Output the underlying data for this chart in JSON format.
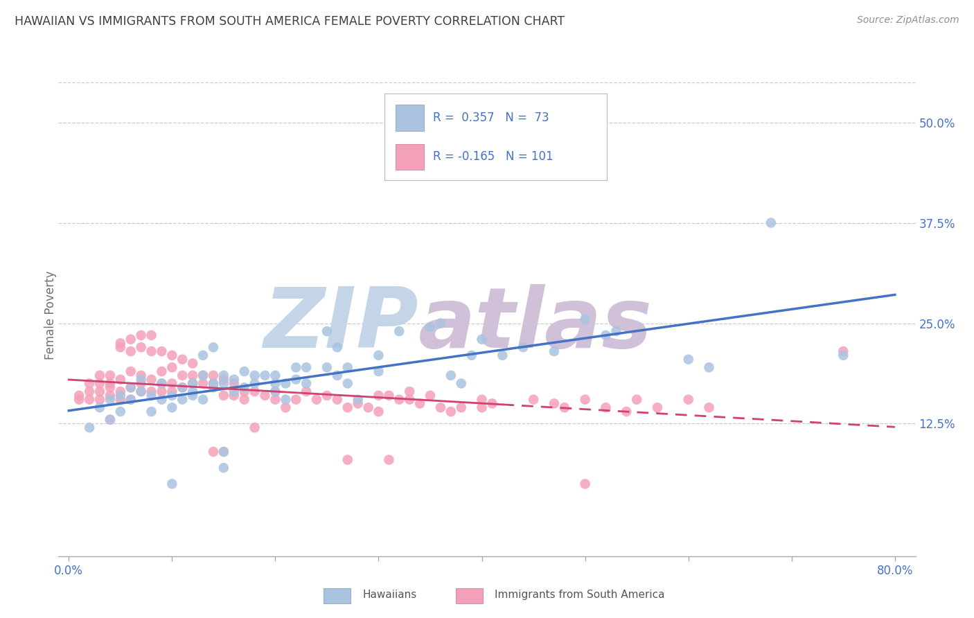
{
  "title": "HAWAIIAN VS IMMIGRANTS FROM SOUTH AMERICA FEMALE POVERTY CORRELATION CHART",
  "source": "Source: ZipAtlas.com",
  "ylabel": "Female Poverty",
  "ytick_labels": [
    "12.5%",
    "25.0%",
    "37.5%",
    "50.0%"
  ],
  "ytick_values": [
    0.125,
    0.25,
    0.375,
    0.5
  ],
  "xtick_values": [
    0.0,
    0.1,
    0.2,
    0.3,
    0.4,
    0.5,
    0.6,
    0.7,
    0.8
  ],
  "xlim": [
    -0.01,
    0.82
  ],
  "ylim": [
    -0.04,
    0.56
  ],
  "hawaiian_color": "#aac4e0",
  "immigrant_color": "#f4a0b8",
  "hawaiian_line_color": "#4472c4",
  "immigrant_line_color": "#d04070",
  "watermark_zip": "ZIP",
  "watermark_atlas": "atlas",
  "watermark_color_zip": "#c5d5e8",
  "watermark_color_atlas": "#d0c0d8",
  "legend_text_color": "#4472c4",
  "title_color": "#404040",
  "source_color": "#909090",
  "background_color": "#ffffff",
  "grid_color": "#cccccc",
  "hawaiian_scatter": [
    [
      0.02,
      0.12
    ],
    [
      0.03,
      0.145
    ],
    [
      0.04,
      0.155
    ],
    [
      0.04,
      0.13
    ],
    [
      0.05,
      0.14
    ],
    [
      0.05,
      0.16
    ],
    [
      0.06,
      0.155
    ],
    [
      0.06,
      0.17
    ],
    [
      0.07,
      0.165
    ],
    [
      0.07,
      0.18
    ],
    [
      0.08,
      0.14
    ],
    [
      0.08,
      0.16
    ],
    [
      0.09,
      0.175
    ],
    [
      0.09,
      0.155
    ],
    [
      0.1,
      0.16
    ],
    [
      0.1,
      0.145
    ],
    [
      0.1,
      0.05
    ],
    [
      0.11,
      0.17
    ],
    [
      0.11,
      0.155
    ],
    [
      0.12,
      0.165
    ],
    [
      0.12,
      0.175
    ],
    [
      0.12,
      0.16
    ],
    [
      0.13,
      0.21
    ],
    [
      0.13,
      0.185
    ],
    [
      0.13,
      0.155
    ],
    [
      0.14,
      0.22
    ],
    [
      0.14,
      0.175
    ],
    [
      0.14,
      0.17
    ],
    [
      0.15,
      0.185
    ],
    [
      0.15,
      0.175
    ],
    [
      0.15,
      0.07
    ],
    [
      0.15,
      0.09
    ],
    [
      0.16,
      0.165
    ],
    [
      0.16,
      0.18
    ],
    [
      0.17,
      0.19
    ],
    [
      0.17,
      0.17
    ],
    [
      0.18,
      0.175
    ],
    [
      0.18,
      0.185
    ],
    [
      0.19,
      0.185
    ],
    [
      0.2,
      0.165
    ],
    [
      0.2,
      0.175
    ],
    [
      0.2,
      0.185
    ],
    [
      0.21,
      0.175
    ],
    [
      0.21,
      0.155
    ],
    [
      0.22,
      0.195
    ],
    [
      0.22,
      0.18
    ],
    [
      0.23,
      0.195
    ],
    [
      0.23,
      0.175
    ],
    [
      0.25,
      0.195
    ],
    [
      0.25,
      0.24
    ],
    [
      0.26,
      0.185
    ],
    [
      0.26,
      0.22
    ],
    [
      0.27,
      0.195
    ],
    [
      0.27,
      0.175
    ],
    [
      0.28,
      0.155
    ],
    [
      0.3,
      0.21
    ],
    [
      0.3,
      0.19
    ],
    [
      0.32,
      0.24
    ],
    [
      0.35,
      0.245
    ],
    [
      0.36,
      0.25
    ],
    [
      0.37,
      0.185
    ],
    [
      0.38,
      0.175
    ],
    [
      0.39,
      0.21
    ],
    [
      0.4,
      0.23
    ],
    [
      0.42,
      0.21
    ],
    [
      0.44,
      0.22
    ],
    [
      0.47,
      0.215
    ],
    [
      0.5,
      0.255
    ],
    [
      0.52,
      0.235
    ],
    [
      0.53,
      0.24
    ],
    [
      0.6,
      0.205
    ],
    [
      0.62,
      0.195
    ],
    [
      0.68,
      0.375
    ],
    [
      0.75,
      0.21
    ]
  ],
  "immigrant_scatter": [
    [
      0.01,
      0.155
    ],
    [
      0.01,
      0.16
    ],
    [
      0.02,
      0.165
    ],
    [
      0.02,
      0.175
    ],
    [
      0.02,
      0.155
    ],
    [
      0.03,
      0.165
    ],
    [
      0.03,
      0.175
    ],
    [
      0.03,
      0.185
    ],
    [
      0.03,
      0.155
    ],
    [
      0.04,
      0.17
    ],
    [
      0.04,
      0.175
    ],
    [
      0.04,
      0.185
    ],
    [
      0.04,
      0.16
    ],
    [
      0.04,
      0.13
    ],
    [
      0.05,
      0.22
    ],
    [
      0.05,
      0.225
    ],
    [
      0.05,
      0.18
    ],
    [
      0.05,
      0.165
    ],
    [
      0.05,
      0.155
    ],
    [
      0.06,
      0.23
    ],
    [
      0.06,
      0.215
    ],
    [
      0.06,
      0.19
    ],
    [
      0.06,
      0.17
    ],
    [
      0.06,
      0.155
    ],
    [
      0.07,
      0.235
    ],
    [
      0.07,
      0.22
    ],
    [
      0.07,
      0.185
    ],
    [
      0.07,
      0.175
    ],
    [
      0.07,
      0.165
    ],
    [
      0.08,
      0.235
    ],
    [
      0.08,
      0.215
    ],
    [
      0.08,
      0.18
    ],
    [
      0.08,
      0.165
    ],
    [
      0.09,
      0.215
    ],
    [
      0.09,
      0.19
    ],
    [
      0.09,
      0.175
    ],
    [
      0.09,
      0.165
    ],
    [
      0.1,
      0.21
    ],
    [
      0.1,
      0.195
    ],
    [
      0.1,
      0.175
    ],
    [
      0.1,
      0.165
    ],
    [
      0.11,
      0.205
    ],
    [
      0.11,
      0.185
    ],
    [
      0.11,
      0.17
    ],
    [
      0.12,
      0.2
    ],
    [
      0.12,
      0.185
    ],
    [
      0.12,
      0.175
    ],
    [
      0.13,
      0.185
    ],
    [
      0.13,
      0.175
    ],
    [
      0.14,
      0.185
    ],
    [
      0.14,
      0.175
    ],
    [
      0.14,
      0.09
    ],
    [
      0.15,
      0.18
    ],
    [
      0.15,
      0.16
    ],
    [
      0.15,
      0.09
    ],
    [
      0.16,
      0.175
    ],
    [
      0.16,
      0.16
    ],
    [
      0.17,
      0.165
    ],
    [
      0.17,
      0.155
    ],
    [
      0.18,
      0.165
    ],
    [
      0.18,
      0.12
    ],
    [
      0.19,
      0.16
    ],
    [
      0.2,
      0.165
    ],
    [
      0.2,
      0.155
    ],
    [
      0.21,
      0.145
    ],
    [
      0.22,
      0.155
    ],
    [
      0.23,
      0.165
    ],
    [
      0.24,
      0.155
    ],
    [
      0.25,
      0.16
    ],
    [
      0.26,
      0.155
    ],
    [
      0.27,
      0.145
    ],
    [
      0.27,
      0.08
    ],
    [
      0.28,
      0.15
    ],
    [
      0.29,
      0.145
    ],
    [
      0.3,
      0.16
    ],
    [
      0.3,
      0.14
    ],
    [
      0.31,
      0.16
    ],
    [
      0.31,
      0.08
    ],
    [
      0.32,
      0.155
    ],
    [
      0.33,
      0.165
    ],
    [
      0.33,
      0.155
    ],
    [
      0.34,
      0.15
    ],
    [
      0.35,
      0.16
    ],
    [
      0.36,
      0.145
    ],
    [
      0.37,
      0.14
    ],
    [
      0.38,
      0.145
    ],
    [
      0.4,
      0.155
    ],
    [
      0.4,
      0.145
    ],
    [
      0.41,
      0.15
    ],
    [
      0.45,
      0.155
    ],
    [
      0.47,
      0.15
    ],
    [
      0.48,
      0.145
    ],
    [
      0.5,
      0.155
    ],
    [
      0.5,
      0.05
    ],
    [
      0.52,
      0.145
    ],
    [
      0.54,
      0.14
    ],
    [
      0.55,
      0.155
    ],
    [
      0.57,
      0.145
    ],
    [
      0.6,
      0.155
    ],
    [
      0.62,
      0.145
    ],
    [
      0.75,
      0.215
    ]
  ]
}
